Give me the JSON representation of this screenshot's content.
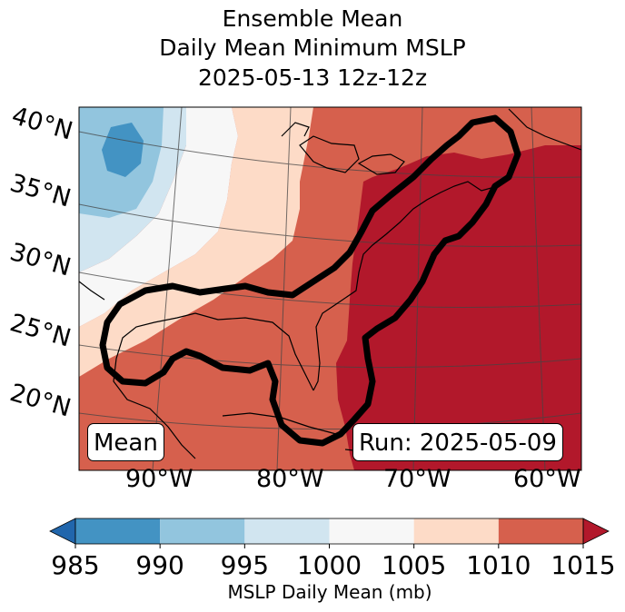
{
  "title": {
    "line1": "Ensemble Mean",
    "line2": "Daily Mean Minimum MSLP",
    "line3": "2025-05-13 12z-12z"
  },
  "map": {
    "lat_labels": [
      "40°N",
      "35°N",
      "30°N",
      "25°N",
      "20°N"
    ],
    "lon_labels": [
      "90°W",
      "80°W",
      "70°W",
      "60°W"
    ],
    "mean_box": "Mean",
    "run_box": "Run: 2025-05-09"
  },
  "colorbar": {
    "ticks": [
      "985",
      "990",
      "995",
      "1000",
      "1005",
      "1010",
      "1015"
    ],
    "label": "MSLP Daily Mean (mb)",
    "colors": [
      "#2166ac",
      "#4393c3",
      "#92c5de",
      "#d1e5f0",
      "#f7f7f7",
      "#fddbc7",
      "#d6604d",
      "#b2182b"
    ]
  }
}
